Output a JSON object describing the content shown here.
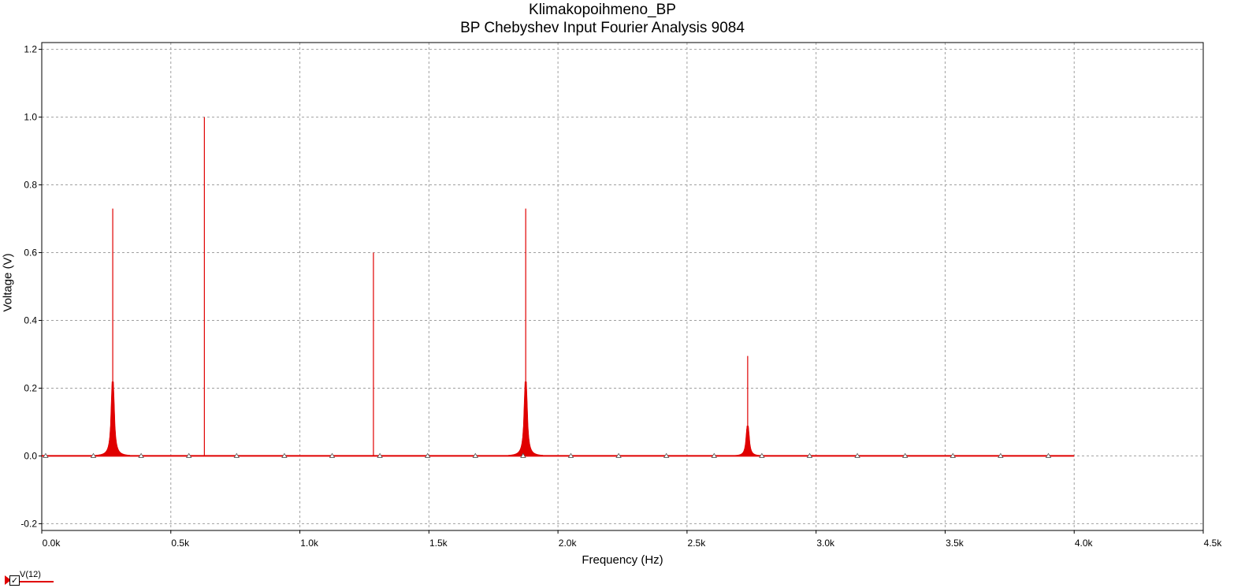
{
  "chart_data": {
    "type": "line",
    "title": "Klimakopoihmeno_BP",
    "subtitle": "BP Chebyshev Input Fourier Analysis 9084",
    "xlabel": "Frequency (Hz)",
    "ylabel": "Voltage (V)",
    "xlim": [
      0,
      4500
    ],
    "ylim": [
      -0.22,
      1.22
    ],
    "x_ticks": [
      0,
      500,
      1000,
      1500,
      2000,
      2500,
      3000,
      3500,
      4000,
      4500
    ],
    "x_tick_labels": [
      "0.0k",
      "0.5k",
      "1.0k",
      "1.5k",
      "2.0k",
      "2.5k",
      "3.0k",
      "3.5k",
      "4.0k",
      "4.5k"
    ],
    "y_ticks": [
      -0.2,
      0.0,
      0.2,
      0.4,
      0.6,
      0.8,
      1.0,
      1.2
    ],
    "y_tick_labels": [
      "-0.2",
      "0.0",
      "0.2",
      "0.4",
      "0.6",
      "0.8",
      "1.0",
      "1.2"
    ],
    "grid": true,
    "legend_position": "bottom-left",
    "series": [
      {
        "name": "V(12)",
        "color": "#e00000",
        "x_range": [
          0,
          4000
        ],
        "peaks": [
          {
            "x": 275,
            "y": 0.73,
            "spread": "wide"
          },
          {
            "x": 630,
            "y": 1.0,
            "spread": "none"
          },
          {
            "x": 1285,
            "y": 0.6,
            "spread": "none"
          },
          {
            "x": 1875,
            "y": 0.73,
            "spread": "wide"
          },
          {
            "x": 2735,
            "y": 0.295,
            "spread": "wide"
          }
        ]
      }
    ],
    "cursor_markers_x": [
      15,
      200,
      385,
      570,
      755,
      940,
      1125,
      1310,
      1495,
      1680,
      1865,
      2050,
      2235,
      2420,
      2605,
      2790,
      2975,
      3160,
      3345,
      3530,
      3715,
      3900
    ]
  },
  "legend": {
    "series_label": "V(12)",
    "checkbox_glyph": "✓"
  }
}
